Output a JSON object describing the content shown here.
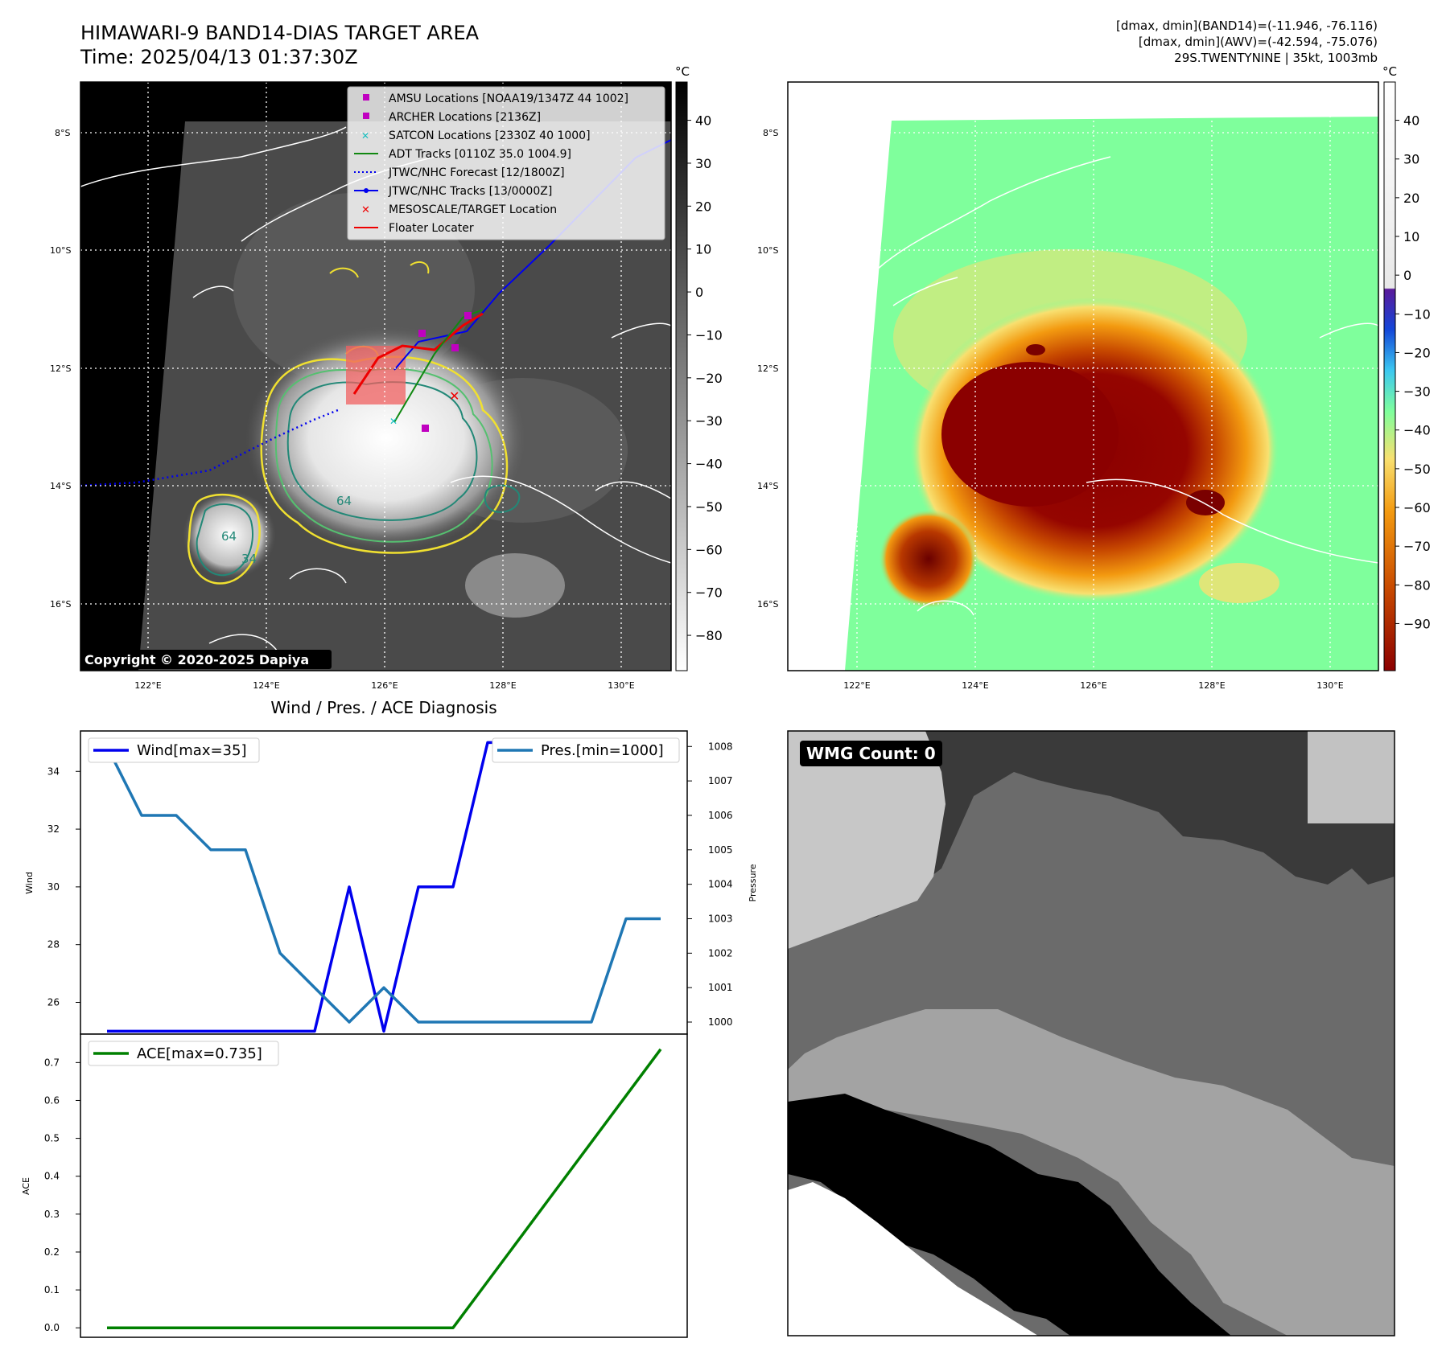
{
  "header": {
    "title_line1": "HIMAWARI-9 BAND14-DIAS TARGET AREA",
    "title_line2": "Time: 2025/04/13 01:37:30Z",
    "stats_line1": "[dmax, dmin](BAND14)=(-11.946, -76.116)",
    "stats_line2": "[dmax, dmin](AWV)=(-42.594, -75.076)",
    "stats_line3": "29S.TWENTYNINE | 35kt, 1003mb"
  },
  "map_ir": {
    "lon_ticks": [
      "122°E",
      "124°E",
      "126°E",
      "128°E",
      "130°E"
    ],
    "lat_ticks": [
      "8°S",
      "10°S",
      "12°S",
      "14°S",
      "16°S"
    ],
    "copyright": "Copyright © 2020-2025 Dapiya",
    "contour_labels": [
      "64",
      "64",
      "34"
    ],
    "legend": [
      {
        "label": "AMSU Locations [NOAA19/1347Z 44 1002]",
        "marker": "square",
        "color": "#c000c0"
      },
      {
        "label": "ARCHER Locations [2136Z]",
        "marker": "square",
        "color": "#c000c0"
      },
      {
        "label": "SATCON Locations [2330Z 40 1000]",
        "marker": "x",
        "color": "#18c0c0"
      },
      {
        "label": "ADT Tracks [0110Z 35.0 1004.9]",
        "marker": "line",
        "color": "#118811"
      },
      {
        "label": "JTWC/NHC Forecast [12/1800Z]",
        "marker": "dotted",
        "color": "#0000ee"
      },
      {
        "label": "JTWC/NHC Tracks [13/0000Z]",
        "marker": "line-dot",
        "color": "#0000ee"
      },
      {
        "label": "MESOSCALE/TARGET Location",
        "marker": "x",
        "color": "#ee0000"
      },
      {
        "label": "Floater Locater",
        "marker": "line",
        "color": "#ee0000"
      }
    ],
    "colorbar": {
      "unit": "°C",
      "ticks": [
        "40",
        "30",
        "20",
        "10",
        "0",
        "−10",
        "−20",
        "−30",
        "−40",
        "−50",
        "−60",
        "−70",
        "−80"
      ]
    }
  },
  "map_awv": {
    "lon_ticks": [
      "122°E",
      "124°E",
      "126°E",
      "128°E",
      "130°E"
    ],
    "lat_ticks": [
      "8°S",
      "10°S",
      "12°S",
      "14°S",
      "16°S"
    ],
    "colorbar": {
      "unit": "°C",
      "ticks": [
        "40",
        "30",
        "20",
        "10",
        "0",
        "−10",
        "−20",
        "−30",
        "−40",
        "−50",
        "−60",
        "−70",
        "−80",
        "−90"
      ],
      "colors": [
        "#8b0000",
        "#c84a00",
        "#f39a10",
        "#f8e070",
        "#7fff9c",
        "#3cc8f0",
        "#1446d8",
        "#5a1a9a",
        "#ffffff"
      ]
    }
  },
  "wmg": {
    "label": "WMG Count: 0"
  },
  "chart_data": [
    {
      "type": "line",
      "title": "Wind / Pres. / ACE Diagnosis",
      "ylabel": "Wind",
      "y2label": "Pressure",
      "ylim": [
        24.9,
        35.4
      ],
      "yticks": [
        26,
        28,
        30,
        32,
        34
      ],
      "y2lim": [
        999.65,
        1008.45
      ],
      "y2ticks": [
        1000,
        1001,
        1002,
        1003,
        1004,
        1005,
        1006,
        1007,
        1008
      ],
      "x": [
        0,
        1,
        2,
        3,
        4,
        5,
        6,
        7,
        8,
        9,
        10,
        11,
        12,
        13,
        14,
        15,
        16
      ],
      "series": [
        {
          "name": "Wind[max=35]",
          "axis": "left",
          "color": "#0000ee",
          "values": [
            25,
            25,
            25,
            25,
            25,
            25,
            25,
            30,
            25,
            30,
            30,
            35,
            35,
            35,
            35,
            35,
            35
          ]
        },
        {
          "name": "Pres.[min=1000]",
          "axis": "right",
          "color": "#1f77b4",
          "values": [
            1008,
            1006,
            1006,
            1005,
            1005,
            1002,
            1001,
            1000,
            1001,
            1000,
            1000,
            1000,
            1000,
            1000,
            1000,
            1003,
            1003
          ]
        }
      ]
    },
    {
      "type": "line",
      "ylabel": "ACE",
      "ylim": [
        -0.025,
        0.775
      ],
      "yticks": [
        0.0,
        0.1,
        0.2,
        0.3,
        0.4,
        0.5,
        0.6,
        0.7
      ],
      "x": [
        0,
        1,
        2,
        3,
        4,
        5,
        6,
        7,
        8,
        9,
        10,
        11,
        12,
        13,
        14,
        15,
        16
      ],
      "series": [
        {
          "name": "ACE[max=0.735]",
          "color": "#008000",
          "values": [
            0,
            0,
            0,
            0,
            0,
            0,
            0,
            0,
            0,
            0,
            0,
            0.1225,
            0.245,
            0.3675,
            0.49,
            0.6125,
            0.735
          ]
        }
      ]
    }
  ]
}
